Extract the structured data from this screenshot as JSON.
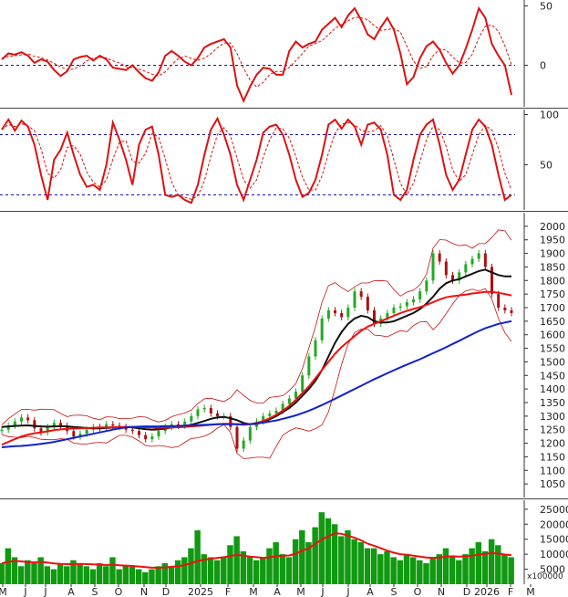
{
  "colors": {
    "oscillator": "#dd1111",
    "signal": "#dd1111",
    "reference": "#1111bb",
    "candle_up": "#22aa22",
    "candle_down": "#aa1111",
    "band": "#cc1111",
    "ma_short": "#111111",
    "ma_mid": "#ee1111",
    "ma_long": "#1122cc",
    "volume": "#119911",
    "volume_ma": "#ee1111",
    "axis": "#333333"
  },
  "x_axis": {
    "labels": [
      "M",
      "J",
      "J",
      "A",
      "S",
      "O",
      "N",
      "D",
      "2025",
      "F",
      "M",
      "A",
      "M",
      "J",
      "J",
      "A",
      "S",
      "O",
      "N",
      "D",
      "2026",
      "F",
      "M"
    ],
    "positions": [
      3,
      28,
      50,
      78,
      104,
      130,
      158,
      182,
      220,
      250,
      278,
      304,
      330,
      354,
      382,
      406,
      432,
      458,
      484,
      512,
      534,
      560,
      582
    ]
  },
  "chart_data": [
    {
      "type": "line",
      "panel": "oscillator",
      "ylim": [
        -35,
        55
      ],
      "yticks": [
        "50",
        "0"
      ],
      "reference_lines": [
        0
      ],
      "series": [
        {
          "values": [
            5,
            10,
            9,
            11,
            8,
            2,
            5,
            3,
            -4,
            -9,
            -5,
            5,
            7,
            8,
            4,
            8,
            5,
            -2,
            -3,
            -4,
            0,
            -6,
            -11,
            -13,
            -6,
            8,
            12,
            8,
            3,
            0,
            6,
            15,
            18,
            20,
            22,
            15,
            -17,
            -30,
            -18,
            -8,
            -2,
            -3,
            -8,
            -8,
            12,
            20,
            15,
            18,
            20,
            30,
            35,
            40,
            32,
            42,
            48,
            38,
            26,
            22,
            32,
            40,
            30,
            10,
            -16,
            -10,
            6,
            16,
            20,
            13,
            2,
            -7,
            0,
            14,
            30,
            48,
            40,
            18,
            8,
            0,
            -25
          ]
        }
      ]
    },
    {
      "type": "line",
      "panel": "stochastic",
      "ylim": [
        5,
        105
      ],
      "yticks": [
        "100",
        "50"
      ],
      "reference_lines": [
        80,
        20
      ],
      "series": [
        {
          "values": [
            85,
            95,
            84,
            94,
            88,
            70,
            40,
            15,
            55,
            65,
            82,
            60,
            40,
            28,
            30,
            25,
            50,
            92,
            75,
            55,
            30,
            70,
            85,
            88,
            60,
            20,
            18,
            20,
            15,
            12,
            30,
            60,
            85,
            96,
            80,
            60,
            30,
            15,
            35,
            55,
            82,
            88,
            90,
            80,
            60,
            35,
            18,
            22,
            35,
            60,
            90,
            95,
            86,
            95,
            88,
            70,
            90,
            92,
            85,
            60,
            20,
            15,
            25,
            55,
            80,
            90,
            95,
            70,
            40,
            25,
            35,
            60,
            85,
            95,
            88,
            70,
            40,
            15,
            20
          ]
        }
      ]
    },
    {
      "type": "candlestick",
      "panel": "price",
      "ylim": [
        1000,
        2050
      ],
      "yticks": [
        "2000",
        "1950",
        "1900",
        "1850",
        "1800",
        "1750",
        "1700",
        "1650",
        "1600",
        "1550",
        "1500",
        "1450",
        "1400",
        "1350",
        "1300",
        "1250",
        "1200",
        "1150",
        "1100",
        "1050"
      ],
      "close": [
        1250,
        1265,
        1280,
        1295,
        1285,
        1255,
        1240,
        1260,
        1275,
        1265,
        1245,
        1225,
        1235,
        1250,
        1260,
        1255,
        1270,
        1265,
        1260,
        1250,
        1245,
        1230,
        1215,
        1225,
        1245,
        1260,
        1270,
        1265,
        1280,
        1300,
        1325,
        1330,
        1310,
        1300,
        1300,
        1260,
        1180,
        1210,
        1260,
        1280,
        1300,
        1310,
        1320,
        1345,
        1365,
        1390,
        1450,
        1520,
        1580,
        1660,
        1690,
        1680,
        1665,
        1700,
        1760,
        1740,
        1690,
        1640,
        1660,
        1680,
        1700,
        1705,
        1720,
        1730,
        1760,
        1800,
        1900,
        1870,
        1820,
        1800,
        1830,
        1860,
        1880,
        1900,
        1850,
        1750,
        1700,
        1690,
        1680
      ],
      "series": [
        {
          "name": "",
          "values": [
            1260,
            1262,
            1264,
            1265,
            1266,
            1264,
            1262,
            1261,
            1262,
            1263,
            1262,
            1260,
            1258,
            1256,
            1255,
            1255,
            1256,
            1258,
            1259,
            1260,
            1258,
            1255,
            1252,
            1250,
            1251,
            1254,
            1258,
            1260,
            1264,
            1268,
            1275,
            1282,
            1290,
            1295,
            1297,
            1292,
            1285,
            1275,
            1270,
            1272,
            1278,
            1288,
            1300,
            1315,
            1330,
            1350,
            1375,
            1400,
            1430,
            1470,
            1520,
            1570,
            1610,
            1640,
            1660,
            1670,
            1665,
            1650,
            1645,
            1645,
            1650,
            1660,
            1670,
            1680,
            1695,
            1715,
            1740,
            1770,
            1790,
            1800,
            1805,
            1815,
            1825,
            1835,
            1840,
            1830,
            1820,
            1815,
            1815
          ]
        },
        {
          "name": "",
          "values": [
            1195,
            1205,
            1215,
            1225,
            1232,
            1237,
            1240,
            1244,
            1248,
            1251,
            1253,
            1254,
            1255,
            1256,
            1257,
            1258,
            1258,
            1259,
            1259,
            1260,
            1260,
            1260,
            1259,
            1258,
            1257,
            1257,
            1258,
            1259,
            1260,
            1262,
            1264,
            1266,
            1268,
            1270,
            1272,
            1272,
            1270,
            1268,
            1270,
            1275,
            1282,
            1292,
            1305,
            1320,
            1338,
            1360,
            1385,
            1410,
            1440,
            1470,
            1500,
            1530,
            1555,
            1575,
            1595,
            1615,
            1630,
            1640,
            1650,
            1660,
            1670,
            1680,
            1688,
            1695,
            1702,
            1710,
            1720,
            1730,
            1738,
            1742,
            1745,
            1748,
            1752,
            1755,
            1758,
            1758,
            1755,
            1750,
            1745
          ]
        },
        {
          "name": "",
          "values": [
            1185,
            1187,
            1189,
            1190,
            1192,
            1195,
            1198,
            1201,
            1205,
            1210,
            1215,
            1220,
            1225,
            1230,
            1235,
            1240,
            1245,
            1250,
            1255,
            1258,
            1260,
            1261,
            1262,
            1262,
            1262,
            1263,
            1263,
            1264,
            1265,
            1266,
            1267,
            1268,
            1269,
            1270,
            1270,
            1270,
            1270,
            1270,
            1271,
            1273,
            1276,
            1280,
            1284,
            1290,
            1296,
            1303,
            1311,
            1320,
            1330,
            1341,
            1352,
            1364,
            1376,
            1388,
            1400,
            1412,
            1424,
            1436,
            1447,
            1458,
            1469,
            1480,
            1490,
            1500,
            1510,
            1521,
            1532,
            1543,
            1554,
            1566,
            1578,
            1590,
            1602,
            1614,
            1624,
            1632,
            1640,
            1645,
            1650
          ]
        }
      ]
    },
    {
      "type": "bar",
      "panel": "volume",
      "ylim": [
        0,
        28000
      ],
      "yticks": [
        "25000",
        "20000",
        "15000",
        "10000",
        "5000"
      ],
      "unit": "x100000",
      "values": [
        7000,
        12000,
        9000,
        6000,
        8000,
        7000,
        9000,
        6000,
        5000,
        7000,
        6000,
        8000,
        7000,
        6000,
        5000,
        7000,
        6000,
        9000,
        5000,
        6000,
        6000,
        5000,
        4000,
        5000,
        6000,
        7000,
        6000,
        8000,
        9000,
        12000,
        18000,
        10000,
        9000,
        8000,
        9000,
        13000,
        16000,
        11000,
        9000,
        8000,
        9000,
        12000,
        14000,
        10000,
        9000,
        15000,
        18000,
        14000,
        19000,
        24000,
        22000,
        20000,
        16000,
        18000,
        15000,
        14000,
        12000,
        12000,
        10000,
        11000,
        9000,
        8000,
        10000,
        9000,
        8000,
        7000,
        9000,
        10000,
        12000,
        9000,
        8000,
        10000,
        12000,
        14000,
        11000,
        15000,
        13000,
        10000,
        9000
      ],
      "series": [
        {
          "name": "",
          "values": [
            7000,
            7500,
            7800,
            7600,
            7400,
            7300,
            7400,
            7200,
            6900,
            6800,
            6700,
            6700,
            6800,
            6700,
            6600,
            6500,
            6400,
            6500,
            6300,
            6200,
            6100,
            5900,
            5700,
            5500,
            5500,
            5600,
            5800,
            6000,
            6400,
            7000,
            7800,
            8200,
            8500,
            8800,
            9000,
            9400,
            9800,
            9500,
            9200,
            9000,
            8800,
            9000,
            9300,
            9500,
            9600,
            10200,
            11200,
            12000,
            13500,
            15000,
            16000,
            17000,
            16800,
            16200,
            15500,
            14600,
            13500,
            12800,
            12000,
            11200,
            10500,
            10000,
            9800,
            9500,
            9200,
            8900,
            8800,
            8900,
            9200,
            9300,
            9200,
            9300,
            9500,
            9900,
            10100,
            10400,
            10200,
            9900,
            9700
          ]
        }
      ]
    }
  ]
}
